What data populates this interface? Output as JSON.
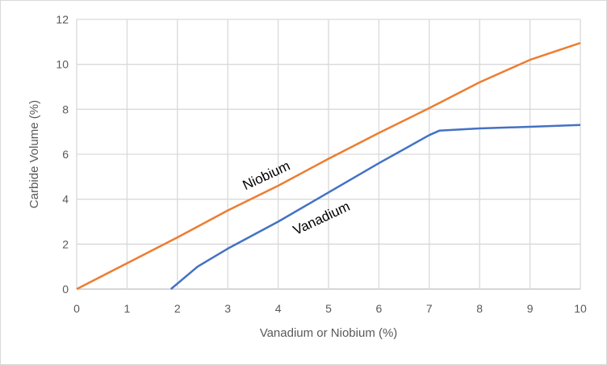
{
  "chart_data": {
    "type": "line",
    "title": "",
    "xlabel": "Vanadium or Niobium (%)",
    "ylabel": "Carbide Volume (%)",
    "xlim": [
      0,
      10
    ],
    "ylim": [
      0,
      12
    ],
    "xticks": [
      0,
      1,
      2,
      3,
      4,
      5,
      6,
      7,
      8,
      9,
      10
    ],
    "yticks": [
      0,
      2,
      4,
      6,
      8,
      10,
      12
    ],
    "grid": true,
    "legend": "none (inline labels)",
    "series": [
      {
        "name": "Niobium",
        "color": "#ed7d31",
        "x": [
          0,
          1,
          2,
          3,
          4,
          5,
          6,
          7,
          8,
          9,
          10
        ],
        "y": [
          0,
          1.15,
          2.3,
          3.5,
          4.6,
          5.8,
          6.95,
          8.05,
          9.2,
          10.2,
          10.95
        ]
      },
      {
        "name": "Vanadium",
        "color": "#4472c4",
        "x": [
          1.87,
          2.4,
          3,
          4,
          5,
          6,
          7,
          7.2,
          8,
          9,
          10
        ],
        "y": [
          0,
          1.0,
          1.8,
          3.0,
          4.3,
          5.6,
          6.85,
          7.05,
          7.15,
          7.22,
          7.3
        ]
      }
    ],
    "annotations": [
      {
        "text": "Niobium",
        "x": 3.35,
        "y": 4.4
      },
      {
        "text": "Vanadium",
        "x": 4.35,
        "y": 2.4
      }
    ]
  }
}
